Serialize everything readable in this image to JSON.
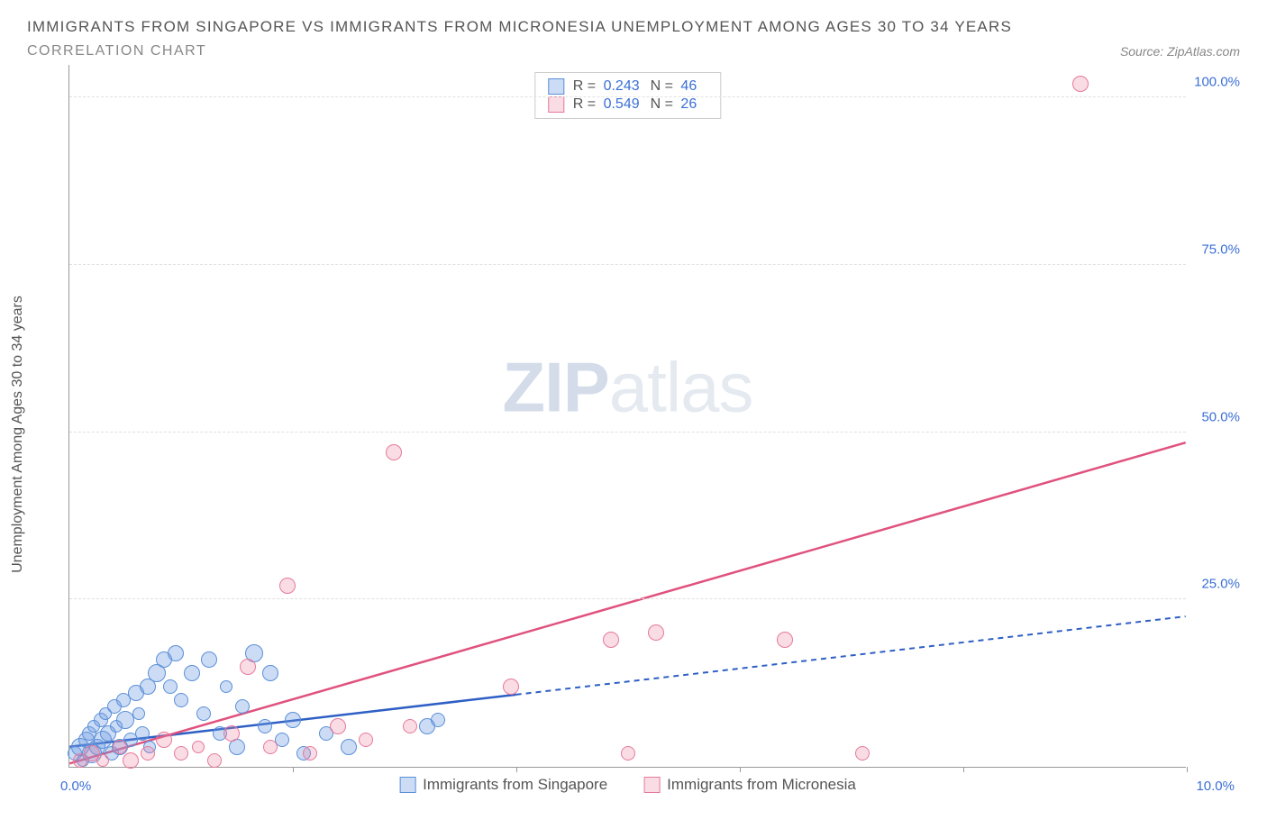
{
  "title": "IMMIGRANTS FROM SINGAPORE VS IMMIGRANTS FROM MICRONESIA UNEMPLOYMENT AMONG AGES 30 TO 34 YEARS",
  "subtitle": "CORRELATION CHART",
  "source": "Source: ZipAtlas.com",
  "y_label": "Unemployment Among Ages 30 to 34 years",
  "watermark_bold": "ZIP",
  "watermark_light": "atlas",
  "chart": {
    "type": "scatter-correlation",
    "xlim": [
      0,
      10
    ],
    "ylim": [
      0,
      105
    ],
    "x_tick_start": "0.0%",
    "x_tick_end": "10.0%",
    "x_ticks_minor": [
      2,
      4,
      6,
      8,
      10
    ],
    "y_ticks": [
      {
        "v": 25,
        "label": "25.0%"
      },
      {
        "v": 50,
        "label": "50.0%"
      },
      {
        "v": 75,
        "label": "75.0%"
      },
      {
        "v": 100,
        "label": "100.0%"
      }
    ],
    "grid_color": "#e0e0e0",
    "background_color": "#ffffff",
    "series": [
      {
        "name": "Immigrants from Singapore",
        "fill": "rgba(108,154,225,0.35)",
        "stroke": "#5a8fd8",
        "trend_color": "#2e5fc4",
        "trend_solid_until_x": 4.0,
        "trend": {
          "y_at_x0": 3.0,
          "y_at_xmax": 22.5
        },
        "stats": {
          "R": "0.243",
          "N": "46"
        },
        "points": [
          {
            "x": 0.05,
            "y": 2,
            "r": 8
          },
          {
            "x": 0.1,
            "y": 3,
            "r": 10
          },
          {
            "x": 0.12,
            "y": 1,
            "r": 7
          },
          {
            "x": 0.15,
            "y": 4,
            "r": 9
          },
          {
            "x": 0.18,
            "y": 5,
            "r": 8
          },
          {
            "x": 0.2,
            "y": 2,
            "r": 11
          },
          {
            "x": 0.22,
            "y": 6,
            "r": 7
          },
          {
            "x": 0.25,
            "y": 3,
            "r": 9
          },
          {
            "x": 0.28,
            "y": 7,
            "r": 8
          },
          {
            "x": 0.3,
            "y": 4,
            "r": 10
          },
          {
            "x": 0.32,
            "y": 8,
            "r": 7
          },
          {
            "x": 0.35,
            "y": 5,
            "r": 9
          },
          {
            "x": 0.38,
            "y": 2,
            "r": 8
          },
          {
            "x": 0.4,
            "y": 9,
            "r": 8
          },
          {
            "x": 0.42,
            "y": 6,
            "r": 7
          },
          {
            "x": 0.45,
            "y": 3,
            "r": 9
          },
          {
            "x": 0.48,
            "y": 10,
            "r": 8
          },
          {
            "x": 0.5,
            "y": 7,
            "r": 10
          },
          {
            "x": 0.55,
            "y": 4,
            "r": 8
          },
          {
            "x": 0.6,
            "y": 11,
            "r": 9
          },
          {
            "x": 0.62,
            "y": 8,
            "r": 7
          },
          {
            "x": 0.65,
            "y": 5,
            "r": 8
          },
          {
            "x": 0.7,
            "y": 12,
            "r": 9
          },
          {
            "x": 0.72,
            "y": 3,
            "r": 7
          },
          {
            "x": 0.78,
            "y": 14,
            "r": 10
          },
          {
            "x": 0.85,
            "y": 16,
            "r": 9
          },
          {
            "x": 0.9,
            "y": 12,
            "r": 8
          },
          {
            "x": 0.95,
            "y": 17,
            "r": 9
          },
          {
            "x": 1.0,
            "y": 10,
            "r": 8
          },
          {
            "x": 1.1,
            "y": 14,
            "r": 9
          },
          {
            "x": 1.2,
            "y": 8,
            "r": 8
          },
          {
            "x": 1.25,
            "y": 16,
            "r": 9
          },
          {
            "x": 1.35,
            "y": 5,
            "r": 8
          },
          {
            "x": 1.4,
            "y": 12,
            "r": 7
          },
          {
            "x": 1.5,
            "y": 3,
            "r": 9
          },
          {
            "x": 1.55,
            "y": 9,
            "r": 8
          },
          {
            "x": 1.65,
            "y": 17,
            "r": 10
          },
          {
            "x": 1.75,
            "y": 6,
            "r": 8
          },
          {
            "x": 1.8,
            "y": 14,
            "r": 9
          },
          {
            "x": 1.9,
            "y": 4,
            "r": 8
          },
          {
            "x": 2.0,
            "y": 7,
            "r": 9
          },
          {
            "x": 2.1,
            "y": 2,
            "r": 8
          },
          {
            "x": 2.3,
            "y": 5,
            "r": 8
          },
          {
            "x": 2.5,
            "y": 3,
            "r": 9
          },
          {
            "x": 3.2,
            "y": 6,
            "r": 9
          },
          {
            "x": 3.3,
            "y": 7,
            "r": 8
          }
        ]
      },
      {
        "name": "Immigrants from Micronesia",
        "fill": "rgba(236,130,160,0.28)",
        "stroke": "#e57a9b",
        "trend_color": "#e0527e",
        "trend_solid_until_x": 10.0,
        "trend": {
          "y_at_x0": 0.5,
          "y_at_xmax": 48.5
        },
        "stats": {
          "R": "0.549",
          "N": "26"
        },
        "points": [
          {
            "x": 0.1,
            "y": 1,
            "r": 8
          },
          {
            "x": 0.2,
            "y": 2,
            "r": 9
          },
          {
            "x": 0.3,
            "y": 1,
            "r": 7
          },
          {
            "x": 0.45,
            "y": 3,
            "r": 8
          },
          {
            "x": 0.55,
            "y": 1,
            "r": 9
          },
          {
            "x": 0.7,
            "y": 2,
            "r": 8
          },
          {
            "x": 0.85,
            "y": 4,
            "r": 9
          },
          {
            "x": 1.0,
            "y": 2,
            "r": 8
          },
          {
            "x": 1.15,
            "y": 3,
            "r": 7
          },
          {
            "x": 1.3,
            "y": 1,
            "r": 8
          },
          {
            "x": 1.45,
            "y": 5,
            "r": 9
          },
          {
            "x": 1.6,
            "y": 15,
            "r": 9
          },
          {
            "x": 1.8,
            "y": 3,
            "r": 8
          },
          {
            "x": 1.95,
            "y": 27,
            "r": 9
          },
          {
            "x": 2.15,
            "y": 2,
            "r": 8
          },
          {
            "x": 2.4,
            "y": 6,
            "r": 9
          },
          {
            "x": 2.65,
            "y": 4,
            "r": 8
          },
          {
            "x": 2.9,
            "y": 47,
            "r": 9
          },
          {
            "x": 3.05,
            "y": 6,
            "r": 8
          },
          {
            "x": 3.95,
            "y": 12,
            "r": 9
          },
          {
            "x": 4.85,
            "y": 19,
            "r": 9
          },
          {
            "x": 5.0,
            "y": 2,
            "r": 8
          },
          {
            "x": 5.25,
            "y": 20,
            "r": 9
          },
          {
            "x": 6.4,
            "y": 19,
            "r": 9
          },
          {
            "x": 7.1,
            "y": 2,
            "r": 8
          },
          {
            "x": 9.05,
            "y": 102,
            "r": 9
          }
        ]
      }
    ]
  },
  "stats_labels": {
    "R": "R =",
    "N": "N ="
  }
}
